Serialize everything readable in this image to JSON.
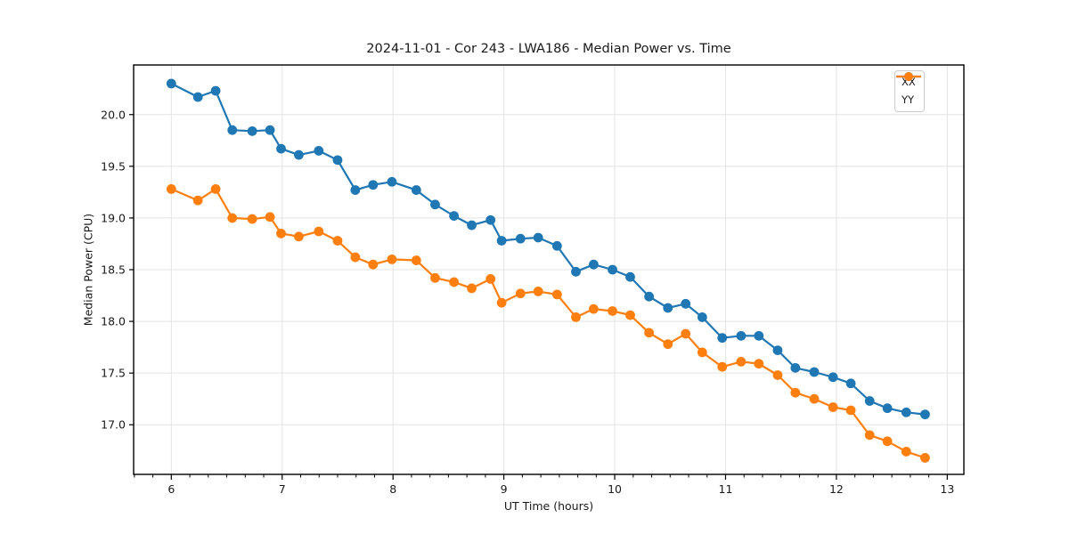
{
  "chart": {
    "title": "2024-11-01 - Cor 243 - LWA186 - Median Power vs. Time",
    "xlabel": "UT Time (hours)",
    "ylabel": "Median Power (CPU)"
  },
  "chart_data": {
    "type": "line",
    "title": "2024-11-01 - Cor 243 - LWA186 - Median Power vs. Time",
    "xlabel": "UT Time (hours)",
    "ylabel": "Median Power (CPU)",
    "xlim": [
      5.66,
      13.15
    ],
    "ylim": [
      16.52,
      20.48
    ],
    "x_ticks": [
      6,
      7,
      8,
      9,
      10,
      11,
      12,
      13
    ],
    "x_minor_tick_step": 0.16667,
    "y_ticks": [
      17.0,
      17.5,
      18.0,
      18.5,
      19.0,
      19.5,
      20.0
    ],
    "grid": true,
    "legend_position": "upper right",
    "marker": "circle",
    "x": [
      6.0,
      6.24,
      6.4,
      6.55,
      6.73,
      6.89,
      6.99,
      7.15,
      7.33,
      7.5,
      7.66,
      7.82,
      7.99,
      8.21,
      8.38,
      8.55,
      8.71,
      8.88,
      8.98,
      9.15,
      9.31,
      9.48,
      9.65,
      9.81,
      9.98,
      10.14,
      10.31,
      10.48,
      10.64,
      10.79,
      10.97,
      11.14,
      11.3,
      11.47,
      11.63,
      11.8,
      11.97,
      12.13,
      12.3,
      12.46,
      12.63,
      12.8
    ],
    "series": [
      {
        "name": "XX",
        "color": "#1f77b4",
        "values": [
          20.3,
          20.17,
          20.23,
          19.85,
          19.84,
          19.85,
          19.67,
          19.61,
          19.65,
          19.56,
          19.27,
          19.32,
          19.35,
          19.27,
          19.13,
          19.02,
          18.93,
          18.98,
          18.78,
          18.8,
          18.81,
          18.73,
          18.48,
          18.55,
          18.5,
          18.43,
          18.24,
          18.13,
          18.17,
          18.04,
          17.84,
          17.86,
          17.86,
          17.72,
          17.55,
          17.51,
          17.46,
          17.4,
          17.23,
          17.16,
          17.12,
          17.1
        ]
      },
      {
        "name": "YY",
        "color": "#ff7f0e",
        "values": [
          19.28,
          19.17,
          19.28,
          19.0,
          18.99,
          19.01,
          18.85,
          18.82,
          18.87,
          18.78,
          18.62,
          18.55,
          18.6,
          18.59,
          18.42,
          18.38,
          18.32,
          18.41,
          18.18,
          18.27,
          18.29,
          18.26,
          18.04,
          18.12,
          18.1,
          18.06,
          17.89,
          17.78,
          17.88,
          17.7,
          17.56,
          17.61,
          17.59,
          17.48,
          17.31,
          17.25,
          17.17,
          17.14,
          16.9,
          16.84,
          16.74,
          16.68
        ]
      }
    ],
    "style": {
      "grid_color": "#e3e3e3",
      "spine_color": "#000000",
      "tick_color": "#000000",
      "text_color": "#1a1a1a"
    }
  }
}
